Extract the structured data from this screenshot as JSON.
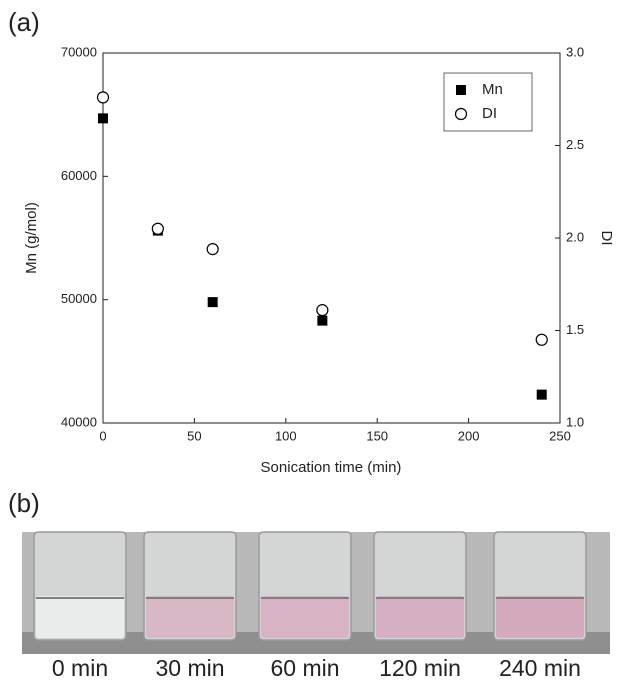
{
  "chart_data": {
    "type": "scatter",
    "panel_label": "(a)",
    "x_label": "Sonication time (min)",
    "y_label": "Mn (g/mol)",
    "y2_label": "DI",
    "x": [
      0,
      30,
      60,
      120,
      240
    ],
    "series": [
      {
        "name": "Mn",
        "color": "#000000",
        "marker": "square",
        "values": [
          64700,
          55600,
          49800,
          48300,
          42300
        ]
      },
      {
        "name": "DI",
        "color": "#000000",
        "marker": "circle",
        "axis": "y2",
        "values": [
          2.76,
          2.05,
          1.94,
          1.61,
          1.45
        ]
      }
    ],
    "xlim": [
      0,
      250
    ],
    "xticks": [
      0,
      50,
      100,
      150,
      200,
      250
    ],
    "ylim": [
      40000,
      70000
    ],
    "yticks": [
      40000,
      50000,
      60000,
      70000
    ],
    "y2lim": [
      1,
      3
    ],
    "y2ticks": [
      {
        "value": 1,
        "label": "1.0"
      },
      1.5,
      {
        "value": 2,
        "label": "2.0"
      },
      2.5,
      {
        "value": 3,
        "label": "3.0"
      }
    ],
    "legend": "upper right",
    "grid": false
  },
  "photo": {
    "panel_label": "(b)",
    "vials": [
      "0 min",
      "30 min",
      "60 min",
      "120 min",
      "240 min"
    ]
  }
}
